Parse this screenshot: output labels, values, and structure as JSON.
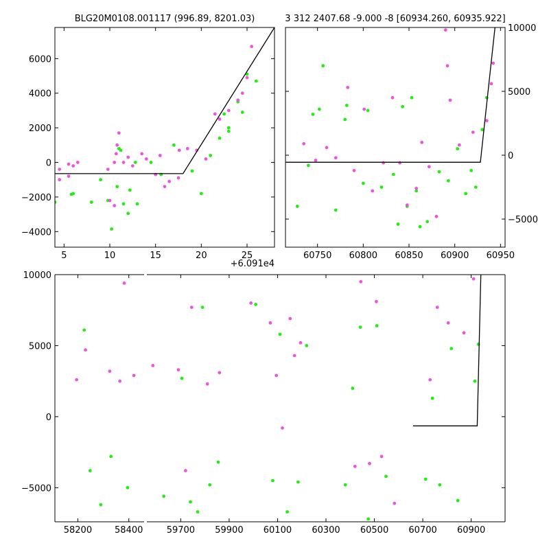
{
  "chart_data": [
    {
      "id": "top-left",
      "type": "scatter",
      "title": "BLG20M0108.001117 (996.89, 8201.03)",
      "offset_label": "+6.091e4",
      "xlim": [
        4,
        28
      ],
      "ylim": [
        -4900,
        7800
      ],
      "xticks": [
        5,
        10,
        15,
        20,
        25
      ],
      "yticks": [
        -4000,
        -2000,
        0,
        2000,
        4000,
        6000
      ],
      "model_line": [
        [
          4,
          -650
        ],
        [
          18,
          -650
        ],
        [
          28,
          7800
        ]
      ],
      "series": [
        {
          "name": "green",
          "color": "#22ee11",
          "points": [
            [
              4.0,
              -2300
            ],
            [
              5.8,
              -1850
            ],
            [
              6.0,
              -1800
            ],
            [
              8.0,
              -2300
            ],
            [
              9.0,
              -1000
            ],
            [
              9.8,
              -2200
            ],
            [
              10.2,
              -3850
            ],
            [
              10.8,
              -1400
            ],
            [
              11.0,
              800
            ],
            [
              11.2,
              700
            ],
            [
              11.5,
              -2400
            ],
            [
              12.0,
              -2950
            ],
            [
              12.2,
              -1600
            ],
            [
              12.8,
              0
            ],
            [
              13.0,
              -2400
            ],
            [
              14.5,
              0
            ],
            [
              15.6,
              -700
            ],
            [
              17.0,
              1000
            ],
            [
              19.0,
              -500
            ],
            [
              20.0,
              -1800
            ],
            [
              21.0,
              400
            ],
            [
              22.0,
              1400
            ],
            [
              22.5,
              2800
            ],
            [
              23.0,
              1800
            ],
            [
              23.0,
              2000
            ],
            [
              24.0,
              3500
            ],
            [
              24.5,
              2900
            ],
            [
              25.0,
              5100
            ],
            [
              26.0,
              4700
            ]
          ]
        },
        {
          "name": "magenta",
          "color": "#ee55dd",
          "points": [
            [
              4.5,
              -400
            ],
            [
              4.5,
              -1000
            ],
            [
              5.5,
              -800
            ],
            [
              5.5,
              -100
            ],
            [
              6.0,
              -200
            ],
            [
              6.5,
              0
            ],
            [
              9.8,
              -400
            ],
            [
              10.0,
              -2200
            ],
            [
              10.5,
              -2500
            ],
            [
              10.5,
              0
            ],
            [
              10.7,
              500
            ],
            [
              10.8,
              1000
            ],
            [
              11.0,
              1700
            ],
            [
              11.5,
              0
            ],
            [
              12.0,
              300
            ],
            [
              12.5,
              -200
            ],
            [
              13.5,
              500
            ],
            [
              14.0,
              200
            ],
            [
              15.0,
              -700
            ],
            [
              15.5,
              400
            ],
            [
              16.0,
              -1400
            ],
            [
              16.5,
              -1100
            ],
            [
              17.5,
              -900
            ],
            [
              17.6,
              700
            ],
            [
              18.5,
              800
            ],
            [
              19.5,
              700
            ],
            [
              20.5,
              200
            ],
            [
              21.5,
              2800
            ],
            [
              22.0,
              2500
            ],
            [
              23.0,
              3000
            ],
            [
              24.0,
              3600
            ],
            [
              24.5,
              4000
            ],
            [
              25.0,
              4900
            ],
            [
              25.5,
              6700
            ]
          ]
        }
      ]
    },
    {
      "id": "top-right",
      "type": "scatter",
      "title": "3 312 2407.68 -9.000 -8 [60934.260, 60935.922]",
      "xlim": [
        60715,
        60955
      ],
      "ylim": [
        -7200,
        10000
      ],
      "xticks": [
        60750,
        60800,
        60850,
        60900,
        60950
      ],
      "yticks": [
        -5000,
        0,
        5000,
        10000
      ],
      "model_line": [
        [
          60715,
          -550
        ],
        [
          60928,
          -550
        ],
        [
          60944,
          10000
        ]
      ],
      "series": [
        {
          "name": "green",
          "color": "#22ee11",
          "points": [
            [
              60728,
              -4000
            ],
            [
              60740,
              -800
            ],
            [
              60745,
              3200
            ],
            [
              60752,
              3600
            ],
            [
              60756,
              7000
            ],
            [
              60770,
              -4300
            ],
            [
              60780,
              2800
            ],
            [
              60782,
              3900
            ],
            [
              60800,
              -2200
            ],
            [
              60805,
              3500
            ],
            [
              60820,
              -2500
            ],
            [
              60833,
              -1500
            ],
            [
              60838,
              -5400
            ],
            [
              60843,
              3800
            ],
            [
              60848,
              -4000
            ],
            [
              60853,
              4500
            ],
            [
              60858,
              -2800
            ],
            [
              60862,
              -5600
            ],
            [
              60870,
              -5200
            ],
            [
              60883,
              -1300
            ],
            [
              60893,
              -2000
            ],
            [
              60903,
              500
            ],
            [
              60912,
              -3000
            ],
            [
              60918,
              -1200
            ],
            [
              60923,
              -2500
            ],
            [
              60930,
              2000
            ],
            [
              60935,
              4500
            ]
          ]
        },
        {
          "name": "magenta",
          "color": "#ee55dd",
          "points": [
            [
              60735,
              900
            ],
            [
              60748,
              -400
            ],
            [
              60760,
              600
            ],
            [
              60770,
              -200
            ],
            [
              60783,
              5300
            ],
            [
              60790,
              -1200
            ],
            [
              60801,
              3600
            ],
            [
              60810,
              -2800
            ],
            [
              60822,
              -600
            ],
            [
              60832,
              4500
            ],
            [
              60840,
              -600
            ],
            [
              60848,
              -3900
            ],
            [
              60858,
              -2600
            ],
            [
              60864,
              1000
            ],
            [
              60872,
              -900
            ],
            [
              60880,
              -4800
            ],
            [
              60890,
              9800
            ],
            [
              60892,
              7000
            ],
            [
              60895,
              4300
            ],
            [
              60905,
              800
            ],
            [
              60920,
              1800
            ],
            [
              60935,
              2700
            ],
            [
              60940,
              5600
            ],
            [
              60942,
              7200
            ]
          ]
        }
      ]
    },
    {
      "id": "bottom",
      "type": "scatter",
      "title": "",
      "segments": [
        {
          "xlim": [
            58110,
            58460
          ],
          "xticks": [
            58200,
            58400
          ]
        },
        {
          "xlim": [
            59560,
            61040
          ],
          "xticks": [
            59700,
            59900,
            60100,
            60300,
            60500,
            60700,
            60900
          ]
        }
      ],
      "ylim": [
        -7400,
        10000
      ],
      "yticks": [
        -5000,
        0,
        5000,
        10000
      ],
      "model_line": [
        [
          60660,
          -650
        ],
        [
          60925,
          -650
        ],
        [
          60940,
          10000
        ]
      ],
      "series": [
        {
          "name": "green",
          "color": "#22ee11",
          "points": [
            [
              58225,
              6100
            ],
            [
              58248,
              -3800
            ],
            [
              58290,
              -6200
            ],
            [
              58330,
              -2800
            ],
            [
              58395,
              -5000
            ],
            [
              59630,
              -5600
            ],
            [
              59705,
              2700
            ],
            [
              59740,
              -6000
            ],
            [
              59770,
              -6700
            ],
            [
              59790,
              7700
            ],
            [
              59820,
              -4800
            ],
            [
              59855,
              -3200
            ],
            [
              60010,
              7900
            ],
            [
              60080,
              -4500
            ],
            [
              60110,
              5800
            ],
            [
              60140,
              -6700
            ],
            [
              60185,
              -4600
            ],
            [
              60220,
              5000
            ],
            [
              60380,
              -4800
            ],
            [
              60410,
              2000
            ],
            [
              60442,
              6300
            ],
            [
              60475,
              -7200
            ],
            [
              60510,
              6400
            ],
            [
              60548,
              -4200
            ],
            [
              60712,
              -4400
            ],
            [
              60740,
              1300
            ],
            [
              60770,
              -4800
            ],
            [
              60818,
              4800
            ],
            [
              60845,
              -5900
            ],
            [
              60915,
              2500
            ],
            [
              60930,
              5100
            ]
          ]
        },
        {
          "name": "magenta",
          "color": "#ee55dd",
          "points": [
            [
              58195,
              2600
            ],
            [
              58230,
              4700
            ],
            [
              58325,
              3200
            ],
            [
              58365,
              2500
            ],
            [
              58382,
              9400
            ],
            [
              58420,
              2900
            ],
            [
              59585,
              3600
            ],
            [
              59690,
              3300
            ],
            [
              59720,
              -3800
            ],
            [
              59745,
              7700
            ],
            [
              59810,
              2300
            ],
            [
              59860,
              3100
            ],
            [
              59990,
              8000
            ],
            [
              60070,
              6600
            ],
            [
              60095,
              2900
            ],
            [
              60120,
              -800
            ],
            [
              60152,
              6900
            ],
            [
              60170,
              4300
            ],
            [
              60195,
              5200
            ],
            [
              60420,
              -3500
            ],
            [
              60444,
              9500
            ],
            [
              60480,
              -3300
            ],
            [
              60508,
              8100
            ],
            [
              60530,
              -2800
            ],
            [
              60583,
              -6100
            ],
            [
              60730,
              2600
            ],
            [
              60760,
              7700
            ],
            [
              60805,
              6600
            ],
            [
              60870,
              5900
            ],
            [
              60910,
              9700
            ]
          ]
        }
      ]
    }
  ]
}
